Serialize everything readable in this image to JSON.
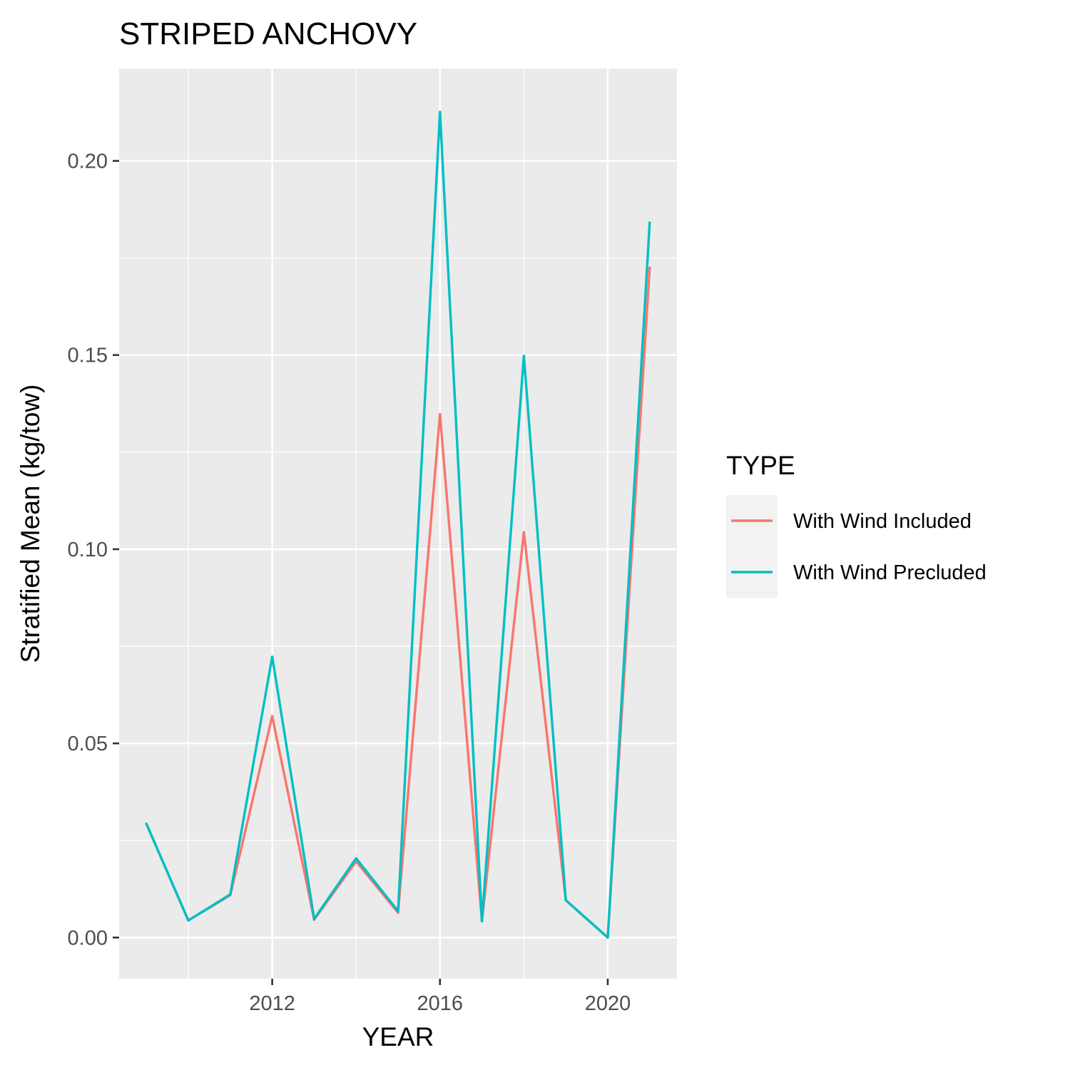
{
  "chart_data": {
    "type": "line",
    "title": "STRIPED ANCHOVY",
    "xlabel": "YEAR",
    "ylabel": "Stratified Mean (kg/tow)",
    "x": [
      2009,
      2010,
      2011,
      2012,
      2013,
      2014,
      2015,
      2016,
      2017,
      2018,
      2019,
      2020,
      2021
    ],
    "series": [
      {
        "name": "With Wind Included",
        "color": "#F8766D",
        "values": [
          0.0293,
          0.0044,
          0.0109,
          0.057,
          0.0046,
          0.0196,
          0.0064,
          0.1348,
          0.0042,
          0.1044,
          0.0096,
          0.0,
          0.1725
        ]
      },
      {
        "name": "With Wind Precluded",
        "color": "#00BFC4",
        "values": [
          0.0293,
          0.0044,
          0.0111,
          0.0723,
          0.0048,
          0.0204,
          0.0068,
          0.2126,
          0.0042,
          0.1498,
          0.0096,
          0.0,
          0.1841
        ]
      }
    ],
    "xlim": [
      2008.35,
      2021.65
    ],
    "ylim": [
      -0.0106,
      0.2238
    ],
    "x_ticks": [
      2012,
      2016,
      2020
    ],
    "x_tick_labels": [
      "2012",
      "2016",
      "2020"
    ],
    "y_ticks": [
      0,
      0.05,
      0.1,
      0.15,
      0.2
    ],
    "y_tick_labels": [
      "0.00",
      "0.05",
      "0.10",
      "0.15",
      "0.20"
    ],
    "grid": true,
    "legend": {
      "title": "TYPE",
      "position": "right"
    }
  }
}
